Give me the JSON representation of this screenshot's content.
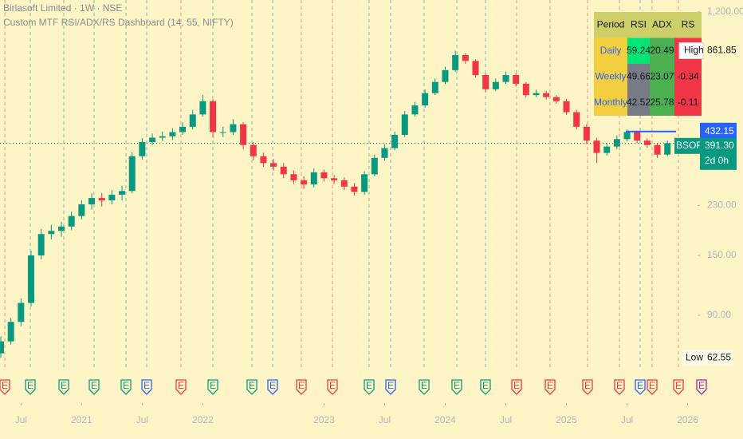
{
  "chart_data": {
    "type": "candlestick",
    "title": "Birlasoft Limited · 1W · NSE",
    "subtitle": "Custom MTF RSI/ADX/RS Dashboard (14, 55, NIFTY)",
    "x": [
      "2020-05",
      "2020-06",
      "2020-07",
      "2020-08",
      "2020-09",
      "2020-10",
      "2020-11",
      "2020-12",
      "2021-01",
      "2021-02",
      "2021-03",
      "2021-04",
      "2021-05",
      "2021-06",
      "2021-07",
      "2021-08",
      "2021-09",
      "2021-10",
      "2021-11",
      "2021-12",
      "2022-01",
      "2022-02",
      "2022-03",
      "2022-04",
      "2022-05",
      "2022-06",
      "2022-07",
      "2022-08",
      "2022-09",
      "2022-10",
      "2022-11",
      "2022-12",
      "2023-01",
      "2023-02",
      "2023-03",
      "2023-04",
      "2023-05",
      "2023-06",
      "2023-07",
      "2023-08",
      "2023-09",
      "2023-10",
      "2023-11",
      "2023-12",
      "2024-01",
      "2024-02",
      "2024-03",
      "2024-04",
      "2024-05",
      "2024-06",
      "2024-07",
      "2024-08",
      "2024-09",
      "2024-10",
      "2024-11",
      "2024-12",
      "2025-01",
      "2025-02",
      "2025-03",
      "2025-04",
      "2025-05",
      "2025-06",
      "2025-07",
      "2025-08",
      "2025-09",
      "2025-10",
      "2025-11"
    ],
    "open": [
      65,
      72,
      85,
      100,
      150,
      180,
      185,
      192,
      210,
      232,
      245,
      240,
      252,
      260,
      350,
      395,
      410,
      415,
      430,
      450,
      500,
      560,
      430,
      430,
      460,
      385,
      350,
      330,
      320,
      300,
      285,
      275,
      305,
      290,
      285,
      270,
      258,
      300,
      345,
      375,
      420,
      500,
      540,
      600,
      660,
      730,
      830,
      790,
      700,
      620,
      660,
      700,
      650,
      590,
      600,
      580,
      560,
      510,
      450,
      400,
      360,
      380,
      405,
      430,
      400,
      385,
      355
    ],
    "high": [
      75,
      88,
      104,
      156,
      188,
      195,
      200,
      218,
      240,
      255,
      256,
      262,
      272,
      362,
      408,
      425,
      432,
      445,
      468,
      520,
      590,
      570,
      450,
      480,
      468,
      395,
      360,
      342,
      330,
      310,
      295,
      315,
      312,
      298,
      292,
      278,
      308,
      355,
      388,
      432,
      515,
      556,
      618,
      680,
      752,
      861.85,
      845,
      800,
      710,
      680,
      722,
      710,
      660,
      618,
      612,
      590,
      570,
      520,
      460,
      410,
      392,
      418,
      440,
      436,
      408,
      392,
      400
    ],
    "low": [
      62.55,
      70,
      82,
      97,
      145,
      172,
      176,
      186,
      204,
      222,
      228,
      232,
      240,
      255,
      340,
      385,
      398,
      402,
      420,
      440,
      490,
      410,
      412,
      420,
      372,
      338,
      320,
      310,
      290,
      276,
      265,
      268,
      282,
      276,
      262,
      250,
      252,
      295,
      338,
      368,
      412,
      490,
      530,
      590,
      650,
      720,
      770,
      685,
      605,
      610,
      650,
      635,
      578,
      580,
      568,
      548,
      498,
      440,
      388,
      330,
      352,
      372,
      398,
      392,
      376,
      345,
      350
    ],
    "close": [
      72,
      85,
      100,
      150,
      180,
      185,
      192,
      210,
      232,
      245,
      240,
      252,
      260,
      350,
      395,
      410,
      415,
      430,
      450,
      500,
      560,
      430,
      430,
      460,
      385,
      350,
      330,
      320,
      300,
      285,
      275,
      305,
      290,
      285,
      270,
      258,
      300,
      345,
      375,
      420,
      500,
      540,
      600,
      660,
      730,
      830,
      790,
      700,
      620,
      660,
      700,
      650,
      590,
      600,
      580,
      560,
      510,
      450,
      400,
      360,
      380,
      405,
      430,
      400,
      385,
      355,
      391.3
    ],
    "up_color": "#089981",
    "down_color": "#f23645",
    "log_scale": true,
    "ylim": [
      42.5,
      1329
    ],
    "yticks": [
      {
        "value": 1200,
        "label": "1,200.00"
      },
      {
        "value": 230,
        "label": "230.00"
      },
      {
        "value": 150,
        "label": "150.00"
      },
      {
        "value": 90,
        "label": "90.00"
      }
    ],
    "xticks": [
      {
        "value": "2020-07",
        "label": "Jul"
      },
      {
        "value": "2021-01",
        "label": "2021"
      },
      {
        "value": "2021-07",
        "label": "Jul"
      },
      {
        "value": "2022-01",
        "label": "2022"
      },
      {
        "value": "2023-01",
        "label": "2023"
      },
      {
        "value": "2023-07",
        "label": "Jul"
      },
      {
        "value": "2024-01",
        "label": "2024"
      },
      {
        "value": "2024-07",
        "label": "Jul"
      },
      {
        "value": "2025-01",
        "label": "2025"
      },
      {
        "value": "2025-07",
        "label": "Jul"
      },
      {
        "value": "2026-01",
        "label": "2026"
      }
    ],
    "high_marker": {
      "label": "High",
      "value": 861.85,
      "value_label": "861.85"
    },
    "low_marker": {
      "label": "Low",
      "value": 62.55,
      "value_label": "62.55"
    },
    "level": {
      "value": 432.15,
      "label": "432.15",
      "color": "#2962ff"
    },
    "last_price": {
      "ticker": "BSOFT",
      "value": 391.3,
      "label": "391.30",
      "countdown": "2d 0h",
      "color": "#089981"
    },
    "earnings_marker": "E",
    "table": {
      "header": [
        "Period",
        "RSI",
        "ADX",
        "RS"
      ],
      "header_bg": "#cfcf6a",
      "rows": [
        {
          "cells": [
            {
              "text": "Daily",
              "bg": "#f3cf40"
            },
            {
              "text": "59.24",
              "bg": "#00e676"
            },
            {
              "text": "20.49",
              "bg": "#4caf50"
            },
            {
              "bg": "#f23645"
            }
          ]
        },
        {
          "cells": [
            {
              "text": "Weekly",
              "bg": "#f3cf40"
            },
            {
              "text": "49.66",
              "bg": "#787b86"
            },
            {
              "text": "23.07",
              "bg": "#4caf50"
            },
            {
              "text": "-0.34",
              "bg": "#f23645"
            }
          ]
        },
        {
          "cells": [
            {
              "text": "Monthly",
              "bg": "#f3cf40"
            },
            {
              "text": "42.52",
              "bg": "#787b86"
            },
            {
              "text": "25.78",
              "bg": "#4caf50"
            },
            {
              "text": "-0.11",
              "bg": "#f23645"
            }
          ]
        }
      ]
    }
  }
}
